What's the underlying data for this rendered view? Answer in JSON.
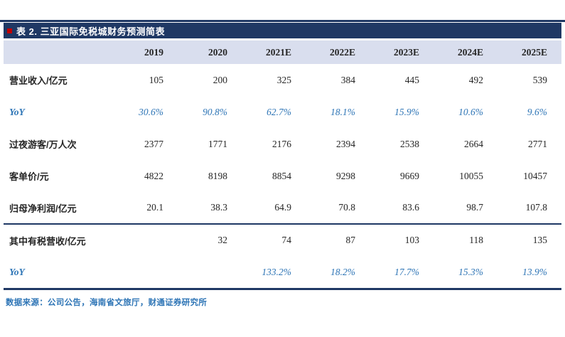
{
  "page": {
    "title": "表 2. 三亚国际免税城财务预测简表",
    "source": "数据来源：公司公告，海南省文旅厅，财通证券研究所"
  },
  "table": {
    "columns": [
      "",
      "2019",
      "2020",
      "2021E",
      "2022E",
      "2023E",
      "2024E",
      "2025E"
    ],
    "rows": [
      {
        "label": "营业收入/亿元",
        "values": [
          "105",
          "200",
          "325",
          "384",
          "445",
          "492",
          "539"
        ]
      },
      {
        "label": "YoY",
        "values": [
          "30.6%",
          "90.8%",
          "62.7%",
          "18.1%",
          "15.9%",
          "10.6%",
          "9.6%"
        ]
      },
      {
        "label": "过夜游客/万人次",
        "values": [
          "2377",
          "1771",
          "2176",
          "2394",
          "2538",
          "2664",
          "2771"
        ]
      },
      {
        "label": "客单价/元",
        "values": [
          "4822",
          "8198",
          "8854",
          "9298",
          "9669",
          "10055",
          "10457"
        ]
      },
      {
        "label": "归母净利润/亿元",
        "values": [
          "20.1",
          "38.3",
          "64.9",
          "70.8",
          "83.6",
          "98.7",
          "107.8"
        ]
      },
      {
        "label": "其中有税营收/亿元",
        "values": [
          "",
          "32",
          "74",
          "87",
          "103",
          "118",
          "135"
        ]
      },
      {
        "label": "YoY",
        "values": [
          "",
          "",
          "133.2%",
          "18.2%",
          "17.7%",
          "15.3%",
          "13.9%"
        ]
      }
    ]
  },
  "colors": {
    "navy_bar": "#1f3864",
    "header_bg": "#d9deee",
    "yoy_blue": "#2e75b6",
    "source_text_blue": "#2e75b6",
    "title_marker_red": "#c00000"
  },
  "chart_data": {
    "type": "table",
    "title": "表 2. 三亚国际免税城财务预测简表",
    "columns": [
      "2019",
      "2020",
      "2021E",
      "2022E",
      "2023E",
      "2024E",
      "2025E"
    ],
    "rows": [
      {
        "metric": "营业收入/亿元",
        "values": [
          105,
          200,
          325,
          384,
          445,
          492,
          539
        ]
      },
      {
        "metric": "YoY",
        "values": [
          "30.6%",
          "90.8%",
          "62.7%",
          "18.1%",
          "15.9%",
          "10.6%",
          "9.6%"
        ]
      },
      {
        "metric": "过夜游客/万人次",
        "values": [
          2377,
          1771,
          2176,
          2394,
          2538,
          2664,
          2771
        ]
      },
      {
        "metric": "客单价/元",
        "values": [
          4822,
          8198,
          8854,
          9298,
          9669,
          10055,
          10457
        ]
      },
      {
        "metric": "归母净利润/亿元",
        "values": [
          20.1,
          38.3,
          64.9,
          70.8,
          83.6,
          98.7,
          107.8
        ]
      },
      {
        "metric": "其中有税营收/亿元",
        "values": [
          null,
          32,
          74,
          87,
          103,
          118,
          135
        ]
      },
      {
        "metric": "YoY",
        "values": [
          null,
          null,
          "133.2%",
          "18.2%",
          "17.7%",
          "15.3%",
          "13.9%"
        ]
      }
    ]
  }
}
